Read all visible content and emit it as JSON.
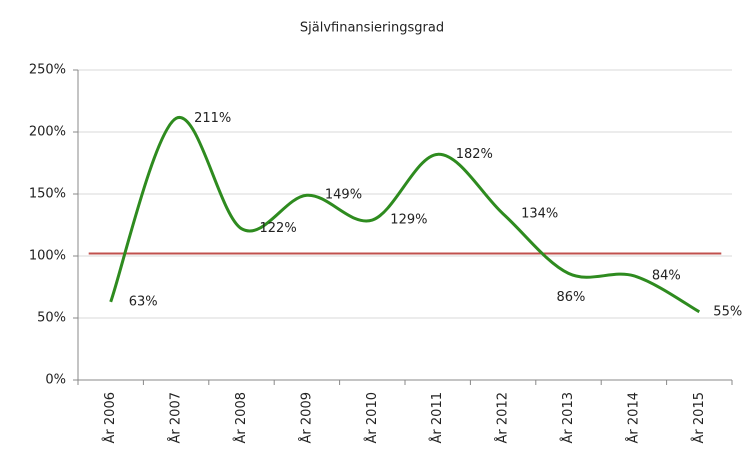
{
  "chart_data": {
    "type": "line",
    "title": "Självfinansieringsgrad",
    "categories": [
      "År 2006",
      "År 2007",
      "År 2008",
      "År 2009",
      "År 2010",
      "År 2011",
      "År 2012",
      "År 2013",
      "År 2014",
      "År 2015"
    ],
    "series": [
      {
        "color": "#2e8b1f",
        "values": [
          63,
          211,
          122,
          149,
          129,
          182,
          134,
          86,
          84,
          55
        ],
        "value_labels": [
          "63%",
          "211%",
          "122%",
          "149%",
          "129%",
          "182%",
          "134%",
          "86%",
          "84%",
          "55%"
        ]
      }
    ],
    "reference_line": {
      "value": 102,
      "color": "#c0504d"
    },
    "ylim": [
      0,
      250
    ],
    "yticks": [
      {
        "value": 0,
        "label": "0%"
      },
      {
        "value": 50,
        "label": "50%"
      },
      {
        "value": 100,
        "label": "100%"
      },
      {
        "value": 150,
        "label": "150%"
      },
      {
        "value": 200,
        "label": "200%"
      },
      {
        "value": 250,
        "label": "250%"
      }
    ],
    "grid": true,
    "smooth": true
  }
}
